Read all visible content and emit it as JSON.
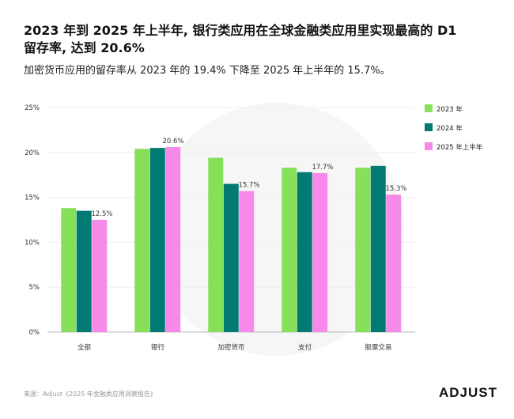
{
  "title": "2023 年到 2025 年上半年, 银行类应用在全球金融类应用里实现最高的 D1 留存率, 达到 20.6%",
  "subtitle": "加密货币应用的留存率从 2023 年的 19.4% 下降至 2025 年上半年的 15.7%。",
  "source": "来源：Adjust《2025 年金融类应用洞察报告》",
  "logo": "ADJUST",
  "chart_data": {
    "type": "bar",
    "title": "",
    "xlabel": "",
    "ylabel": "",
    "ylim": [
      0,
      25
    ],
    "yticks": [
      "0%",
      "5%",
      "10%",
      "15%",
      "20%",
      "25%"
    ],
    "grid": true,
    "legend_position": "right",
    "categories": [
      "全部",
      "银行",
      "加密货币",
      "支付",
      "股票交易"
    ],
    "series": [
      {
        "name": "2023 年",
        "color": "#86e05a",
        "values": [
          13.8,
          20.4,
          19.4,
          18.3,
          18.3
        ]
      },
      {
        "name": "2024 年",
        "color": "#007a73",
        "values": [
          13.5,
          20.5,
          16.5,
          17.8,
          18.5
        ]
      },
      {
        "name": "2025 年上半年",
        "color": "#f78ae8",
        "values": [
          12.5,
          20.6,
          15.7,
          17.7,
          15.3
        ]
      }
    ],
    "data_labels": [
      "12.5%",
      "20.6%",
      "15.7%",
      "17.7%",
      "15.3%"
    ]
  }
}
